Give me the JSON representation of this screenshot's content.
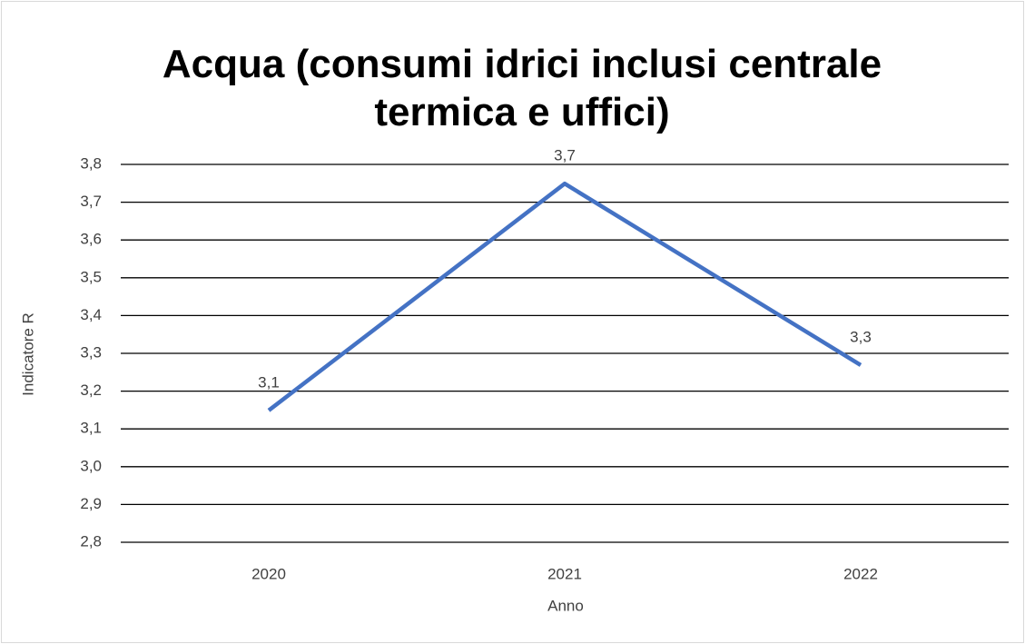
{
  "chart_data": {
    "type": "line",
    "title": "Acqua (consumi idrici inclusi centrale termica e uffici)",
    "x_label": "Anno",
    "y_label": "Indicatore R",
    "categories": [
      "2020",
      "2021",
      "2022"
    ],
    "series": [
      {
        "name": "Indicatore R",
        "color": "#4472c4",
        "values": [
          3.149,
          3.749,
          3.269
        ],
        "value_labels": [
          "3,1",
          "3,7",
          "3,3"
        ]
      }
    ],
    "ylim": [
      2.8,
      3.8
    ],
    "yticks": [
      {
        "value": 2.8,
        "label": "2,8"
      },
      {
        "value": 2.9,
        "label": "2,9"
      },
      {
        "value": 3.0,
        "label": "3,0"
      },
      {
        "value": 3.1,
        "label": "3,1"
      },
      {
        "value": 3.2,
        "label": "3,2"
      },
      {
        "value": 3.3,
        "label": "3,3"
      },
      {
        "value": 3.4,
        "label": "3,4"
      },
      {
        "value": 3.5,
        "label": "3,5"
      },
      {
        "value": 3.6,
        "label": "3,6"
      },
      {
        "value": 3.7,
        "label": "3,7"
      },
      {
        "value": 3.8,
        "label": "3,8"
      }
    ],
    "grid": true
  }
}
